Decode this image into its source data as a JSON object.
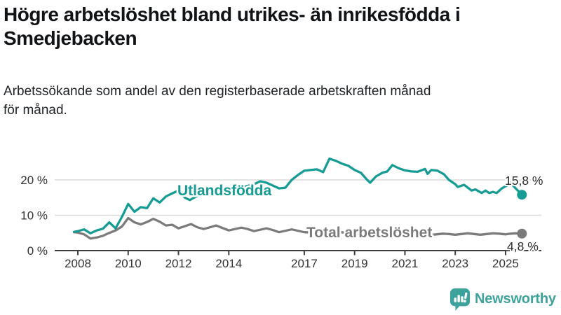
{
  "header": {
    "title_line1": "Högre arbetslöshet bland utrikes- än inrikesfödda i",
    "title_line2": "Smedjebacken",
    "subtitle_line1": "Arbetssökande som andel av den registerbaserade arbetskraften månad",
    "subtitle_line2": "för månad."
  },
  "footer": {
    "brand": "Newsworthy"
  },
  "colors": {
    "teal": "#169C94",
    "gray": "#7B7B7B",
    "logo_teal": "#3EA29C",
    "grid": "#DBDBDB",
    "axis": "#3F3F3F",
    "tick_text": "#333333"
  },
  "chart_data": {
    "type": "line",
    "unit": "%",
    "grid": true,
    "x_axis": {
      "ticks": [
        2008,
        2010,
        2012,
        2014,
        2017,
        2019,
        2021,
        2023,
        2025
      ],
      "range": [
        2007.85,
        2025.9
      ]
    },
    "y_axis": {
      "ticks": [
        {
          "value": 0,
          "label": "0 %"
        },
        {
          "value": 10,
          "label": "10 %"
        },
        {
          "value": 20,
          "label": "20 %"
        }
      ],
      "range": [
        0,
        27
      ]
    },
    "series": [
      {
        "name": "Utlandsfödda",
        "color": "#169C94",
        "end_label": "15,8 %",
        "end_value": 15.8,
        "points": [
          [
            2007.85,
            5.3
          ],
          [
            2008.0,
            5.5
          ],
          [
            2008.25,
            6.0
          ],
          [
            2008.5,
            4.9
          ],
          [
            2008.75,
            5.7
          ],
          [
            2009.0,
            6.2
          ],
          [
            2009.25,
            8.0
          ],
          [
            2009.5,
            6.3
          ],
          [
            2009.75,
            9.5
          ],
          [
            2010.0,
            13.2
          ],
          [
            2010.25,
            11.0
          ],
          [
            2010.5,
            12.3
          ],
          [
            2010.75,
            12.0
          ],
          [
            2011.0,
            14.8
          ],
          [
            2011.25,
            13.6
          ],
          [
            2011.5,
            15.3
          ],
          [
            2011.75,
            16.2
          ],
          [
            2012.0,
            17.0
          ],
          [
            2012.25,
            15.0
          ],
          [
            2012.45,
            14.3
          ],
          [
            2012.75,
            15.5
          ],
          [
            2013.0,
            16.2
          ],
          [
            2013.25,
            15.6
          ],
          [
            2013.5,
            16.6
          ],
          [
            2013.75,
            17.2
          ],
          [
            2014.0,
            17.6
          ],
          [
            2014.25,
            17.1
          ],
          [
            2014.5,
            17.9
          ],
          [
            2014.75,
            18.3
          ],
          [
            2015.0,
            18.8
          ],
          [
            2015.25,
            19.6
          ],
          [
            2015.5,
            19.2
          ],
          [
            2015.75,
            18.4
          ],
          [
            2016.0,
            17.6
          ],
          [
            2016.25,
            17.8
          ],
          [
            2016.5,
            20.0
          ],
          [
            2016.75,
            21.4
          ],
          [
            2017.0,
            22.6
          ],
          [
            2017.25,
            22.8
          ],
          [
            2017.5,
            23.0
          ],
          [
            2017.75,
            22.2
          ],
          [
            2018.0,
            26.0
          ],
          [
            2018.25,
            25.4
          ],
          [
            2018.5,
            24.6
          ],
          [
            2018.75,
            24.0
          ],
          [
            2019.0,
            22.8
          ],
          [
            2019.25,
            22.0
          ],
          [
            2019.5,
            20.0
          ],
          [
            2019.62,
            19.2
          ],
          [
            2019.85,
            21.0
          ],
          [
            2020.1,
            22.0
          ],
          [
            2020.3,
            22.4
          ],
          [
            2020.5,
            24.2
          ],
          [
            2020.75,
            23.3
          ],
          [
            2021.0,
            22.7
          ],
          [
            2021.25,
            22.4
          ],
          [
            2021.5,
            22.3
          ],
          [
            2021.8,
            23.1
          ],
          [
            2021.9,
            21.7
          ],
          [
            2022.05,
            22.8
          ],
          [
            2022.3,
            22.6
          ],
          [
            2022.55,
            21.6
          ],
          [
            2022.75,
            20.0
          ],
          [
            2023.0,
            18.8
          ],
          [
            2023.1,
            18.0
          ],
          [
            2023.35,
            18.6
          ],
          [
            2023.65,
            17.0
          ],
          [
            2023.8,
            17.3
          ],
          [
            2024.05,
            16.3
          ],
          [
            2024.2,
            17.0
          ],
          [
            2024.35,
            16.3
          ],
          [
            2024.5,
            16.6
          ],
          [
            2024.65,
            16.3
          ],
          [
            2024.85,
            17.6
          ],
          [
            2025.1,
            18.6
          ],
          [
            2025.2,
            19.2
          ],
          [
            2025.4,
            17.6
          ],
          [
            2025.65,
            15.8
          ]
        ]
      },
      {
        "name": "Total arbetslöshet",
        "color": "#7B7B7B",
        "end_label": "4,8 %",
        "end_value": 4.8,
        "points": [
          [
            2007.85,
            5.2
          ],
          [
            2008.0,
            5.1
          ],
          [
            2008.25,
            4.6
          ],
          [
            2008.5,
            3.4
          ],
          [
            2008.75,
            3.7
          ],
          [
            2009.0,
            4.2
          ],
          [
            2009.25,
            5.0
          ],
          [
            2009.5,
            5.7
          ],
          [
            2009.75,
            6.8
          ],
          [
            2010.0,
            9.2
          ],
          [
            2010.25,
            8.0
          ],
          [
            2010.5,
            7.4
          ],
          [
            2010.75,
            8.1
          ],
          [
            2011.0,
            9.0
          ],
          [
            2011.25,
            8.2
          ],
          [
            2011.5,
            7.1
          ],
          [
            2011.75,
            7.3
          ],
          [
            2012.0,
            6.3
          ],
          [
            2012.25,
            6.9
          ],
          [
            2012.5,
            7.5
          ],
          [
            2012.75,
            6.6
          ],
          [
            2013.0,
            6.1
          ],
          [
            2013.25,
            6.6
          ],
          [
            2013.5,
            7.1
          ],
          [
            2013.75,
            6.4
          ],
          [
            2014.0,
            5.7
          ],
          [
            2014.25,
            6.1
          ],
          [
            2014.5,
            6.5
          ],
          [
            2014.75,
            6.1
          ],
          [
            2015.0,
            5.5
          ],
          [
            2015.25,
            5.9
          ],
          [
            2015.5,
            6.3
          ],
          [
            2015.75,
            5.8
          ],
          [
            2016.0,
            5.2
          ],
          [
            2016.25,
            5.6
          ],
          [
            2016.5,
            6.0
          ],
          [
            2016.75,
            5.6
          ],
          [
            2017.0,
            5.2
          ],
          [
            2017.25,
            5.1
          ],
          [
            2017.5,
            5.4
          ],
          [
            2017.75,
            5.1
          ],
          [
            2018.0,
            4.7
          ],
          [
            2018.25,
            4.9
          ],
          [
            2018.5,
            5.2
          ],
          [
            2018.75,
            4.9
          ],
          [
            2019.0,
            4.6
          ],
          [
            2019.25,
            4.8
          ],
          [
            2019.5,
            5.1
          ],
          [
            2019.75,
            5.0
          ],
          [
            2020.0,
            5.3
          ],
          [
            2020.25,
            5.8
          ],
          [
            2020.5,
            5.7
          ],
          [
            2020.75,
            5.3
          ],
          [
            2021.0,
            5.1
          ],
          [
            2021.25,
            4.9
          ],
          [
            2021.5,
            4.7
          ],
          [
            2021.75,
            4.6
          ],
          [
            2022.0,
            4.4
          ],
          [
            2022.25,
            4.6
          ],
          [
            2022.5,
            4.8
          ],
          [
            2022.75,
            4.7
          ],
          [
            2023.0,
            4.5
          ],
          [
            2023.25,
            4.7
          ],
          [
            2023.5,
            4.9
          ],
          [
            2023.75,
            4.7
          ],
          [
            2024.0,
            4.5
          ],
          [
            2024.25,
            4.7
          ],
          [
            2024.5,
            4.9
          ],
          [
            2024.75,
            4.8
          ],
          [
            2025.0,
            4.6
          ],
          [
            2025.2,
            4.8
          ],
          [
            2025.4,
            4.9
          ],
          [
            2025.65,
            4.8
          ]
        ]
      }
    ]
  }
}
